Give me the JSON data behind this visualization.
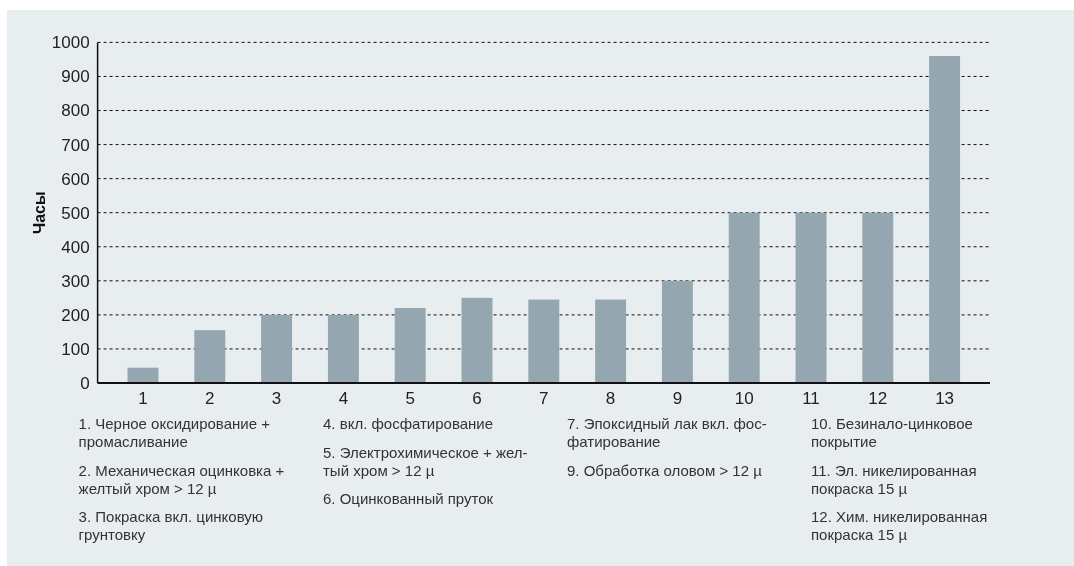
{
  "chart_data": {
    "type": "bar",
    "ylabel": "Часы",
    "categories": [
      "1",
      "2",
      "3",
      "4",
      "5",
      "6",
      "7",
      "8",
      "9",
      "10",
      "11",
      "12",
      "13"
    ],
    "values": [
      45,
      155,
      200,
      200,
      220,
      250,
      245,
      245,
      300,
      500,
      500,
      500,
      960
    ],
    "color": "#94a6b0",
    "ylim": [
      0,
      1000
    ],
    "yticks": [
      0,
      100,
      200,
      300,
      400,
      500,
      600,
      700,
      800,
      900,
      1000
    ],
    "grid": "y",
    "annotations": [
      "1. Черное оксидирование +\nпромасливание",
      "2. Механическая оцинковка +\nжелтый хром > 12 µ",
      "3. Покраска вкл. цинковую\nгрунтовку",
      "4. вкл. фосфатирование",
      "5. Электрохимическое + жел-\nтый хром > 12 µ",
      "6. Оцинкованный пруток",
      "7. Эпоксидный лак вкл. фос-\nфатирование",
      "9. Обработка оловом > 12 µ",
      "10. Безинало-цинковое\nпокрытие",
      "11. Эл. никелированная\nпокраска 15 µ",
      "12. Хим. никелированная\nпокраска 15 µ"
    ]
  }
}
